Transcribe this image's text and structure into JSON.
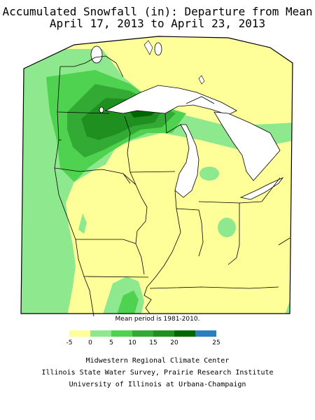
{
  "title_line1": "Accumulated Snowfall (in): Departure from Mean",
  "title_line2": "April 17, 2013 to April 23, 2013",
  "note": "Mean period is 1981-2010.",
  "legend": {
    "bins": [
      {
        "color": "#ffff99"
      },
      {
        "color": "#8ee88e"
      },
      {
        "color": "#4fd24f"
      },
      {
        "color": "#33aa33"
      },
      {
        "color": "#1f8f1f"
      },
      {
        "color": "#006600"
      },
      {
        "color": "#2b7fc0"
      }
    ],
    "ticks": [
      "-5",
      "0",
      "5",
      "10",
      "15",
      "20",
      "25"
    ]
  },
  "credits": [
    "Midwestern Regional Climate Center",
    "Illinois State Water Survey, Prairie Research Institute",
    "University of Illinois at Urbana-Champaign"
  ]
}
